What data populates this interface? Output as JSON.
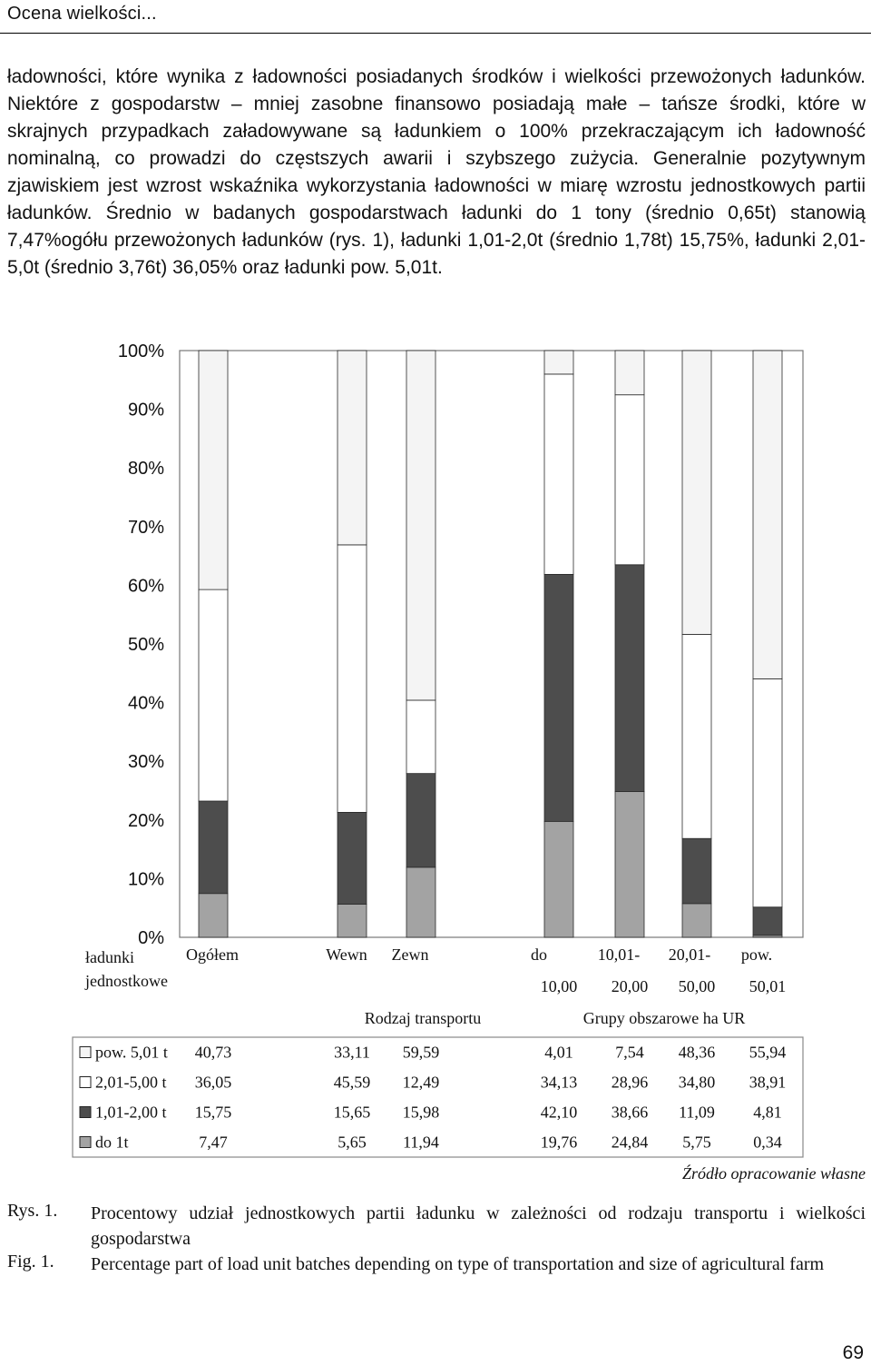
{
  "header": {
    "running_title": "Ocena wielkości..."
  },
  "body": {
    "paragraph": "ładowności, które wynika z ładowności posiadanych środków i wielkości przewożonych ładunków. Niektóre z gospodarstw – mniej zasobne finansowo posiadają małe – tańsze środki, które w skrajnych przypadkach załadowywane są ładunkiem o 100% przekraczającym ich ładowność nominalną, co prowadzi do częstszych awarii i szybszego zużycia. Generalnie pozytywnym zjawiskiem jest wzrost wskaźnika wykorzystania ładowności w miarę wzrostu jednostkowych partii ładunków. Średnio w badanych gospodarstwach ładunki do 1 tony (średnio 0,65t) stanowią 7,47%ogółu przewożonych ładunków (rys. 1), ładunki 1,01-2,0t (średnio 1,78t) 15,75%, ładunki 2,01-5,0t (średnio 3,76t) 36,05% oraz ładunki pow. 5,01t."
  },
  "chart_data": {
    "type": "bar",
    "stacked": true,
    "percent_stacked": true,
    "categories": [
      "Ogółem",
      "Wewn",
      "Zewn",
      "do 10,00",
      "10,01-20,00",
      "20,01-50,00",
      "pow. 50,01"
    ],
    "category_labels": [
      [
        "Ogółem",
        ""
      ],
      [
        "Wewn",
        ""
      ],
      [
        "Zewn",
        ""
      ],
      [
        "do",
        "10,00"
      ],
      [
        "10,01-",
        "20,00"
      ],
      [
        "20,01-",
        "50,00"
      ],
      [
        "pow.",
        "50,01"
      ]
    ],
    "series": [
      {
        "name": "do 1t",
        "color": "#a3a3a3",
        "values": [
          7.47,
          5.65,
          11.94,
          19.76,
          24.84,
          5.75,
          0.34
        ]
      },
      {
        "name": "1,01-2,00 t",
        "color": "#4d4d4d",
        "values": [
          15.75,
          15.65,
          15.98,
          42.1,
          38.66,
          11.09,
          4.81
        ]
      },
      {
        "name": "2,01-5,00 t",
        "color": "#ffffff",
        "values": [
          36.05,
          45.59,
          12.49,
          34.13,
          28.96,
          34.8,
          38.91
        ]
      },
      {
        "name": "pow. 5,01 t",
        "color": "#f4f4f4",
        "values": [
          40.73,
          33.11,
          59.59,
          4.01,
          7.54,
          48.36,
          55.94
        ]
      }
    ],
    "table_row_order": [
      "pow. 5,01 t",
      "2,01-5,00 t",
      "1,01-2,00 t",
      "do 1t"
    ],
    "table_display": {
      "pow. 5,01 t": [
        "40,73",
        "33,11",
        "59,59",
        "4,01",
        "7,54",
        "48,36",
        "55,94"
      ],
      "2,01-5,00 t": [
        "36,05",
        "45,59",
        "12,49",
        "34,13",
        "28,96",
        "34,80",
        "38,91"
      ],
      "1,01-2,00 t": [
        "15,75",
        "15,65",
        "15,98",
        "42,10",
        "38,66",
        "11,09",
        "4,81"
      ],
      "do 1t": [
        "7,47",
        "5,65",
        "11,94",
        "19,76",
        "24,84",
        "5,75",
        "0,34"
      ]
    },
    "y_ticks": [
      "0%",
      "10%",
      "20%",
      "30%",
      "40%",
      "50%",
      "60%",
      "70%",
      "80%",
      "90%",
      "100%"
    ],
    "ylim": [
      0,
      100
    ],
    "axis_title_lines": [
      "ładunki",
      "jednostkowe"
    ],
    "group_labels": [
      "Rodzaj transportu",
      "Grupy obszarowe ha UR"
    ],
    "grid": false
  },
  "source_note": "Źródło opracowanie własne",
  "captions": [
    {
      "label": "Rys. 1.",
      "text": "Procentowy udział jednostkowych partii ładunku w zależności od rodzaju transportu i wielkości gospodarstwa"
    },
    {
      "label": "Fig. 1.",
      "text": "Percentage part of load unit batches depending on type of transportation and size of agricultural farm"
    }
  ],
  "page_number": "69"
}
